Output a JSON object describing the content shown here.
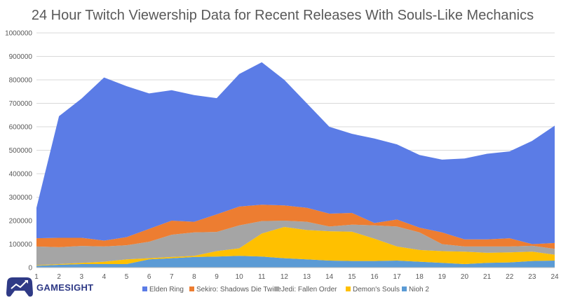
{
  "logo": {
    "text": "GAMESIGHT"
  },
  "chart_data": {
    "type": "area",
    "stacked": true,
    "title": "24 Hour Twitch Viewership Data for Recent Releases With Souls-Like Mechanics",
    "xlabel": "",
    "ylabel": "",
    "ylim": [
      0,
      1000000
    ],
    "y_ticks": [
      0,
      100000,
      200000,
      300000,
      400000,
      500000,
      600000,
      700000,
      800000,
      900000,
      1000000
    ],
    "x": [
      1,
      2,
      3,
      4,
      5,
      6,
      7,
      8,
      9,
      10,
      11,
      12,
      13,
      14,
      15,
      16,
      17,
      18,
      19,
      20,
      21,
      22,
      23,
      24
    ],
    "grid": true,
    "legend_position": "bottom",
    "series": [
      {
        "name": "Nioh 2",
        "color": "#5b9bd5",
        "values": [
          8000,
          12000,
          15000,
          15000,
          15000,
          35000,
          40000,
          45000,
          47000,
          50000,
          47000,
          40000,
          35000,
          30000,
          28000,
          28000,
          30000,
          25000,
          20000,
          15000,
          20000,
          22000,
          28000,
          30000
        ]
      },
      {
        "name": "Demon's Souls",
        "color": "#ffc000",
        "values": [
          2000,
          3000,
          5000,
          10000,
          20000,
          5000,
          5000,
          5000,
          23000,
          32000,
          98000,
          133000,
          125000,
          125000,
          125000,
          95000,
          60000,
          50000,
          50000,
          53000,
          43000,
          43000,
          40000,
          25000
        ]
      },
      {
        "name": "Jedi: Fallen Order",
        "color": "#a5a5a5",
        "values": [
          80000,
          72000,
          72000,
          65000,
          60000,
          70000,
          95000,
          100000,
          82000,
          98000,
          53000,
          27000,
          35000,
          20000,
          30000,
          57000,
          85000,
          75000,
          30000,
          22000,
          27000,
          25000,
          25000,
          25000
        ]
      },
      {
        "name": "Sekiro: Shadows Die Twice",
        "color": "#ed7d31",
        "values": [
          35000,
          40000,
          35000,
          25000,
          35000,
          55000,
          60000,
          45000,
          75000,
          80000,
          70000,
          65000,
          60000,
          55000,
          50000,
          10000,
          30000,
          20000,
          50000,
          30000,
          30000,
          35000,
          7000,
          25000
        ]
      },
      {
        "name": "Elden Ring",
        "color": "#5b7ce6",
        "values": [
          130000,
          518000,
          593000,
          695000,
          643000,
          577000,
          556000,
          540000,
          495000,
          565000,
          607000,
          535000,
          445000,
          370000,
          337000,
          360000,
          320000,
          310000,
          310000,
          345000,
          365000,
          370000,
          440000,
          500000
        ]
      }
    ],
    "legend_order": [
      "Elden Ring",
      "Sekiro: Shadows Die Twice",
      "Jedi: Fallen Order",
      "Demon's Souls",
      "Nioh 2"
    ]
  }
}
